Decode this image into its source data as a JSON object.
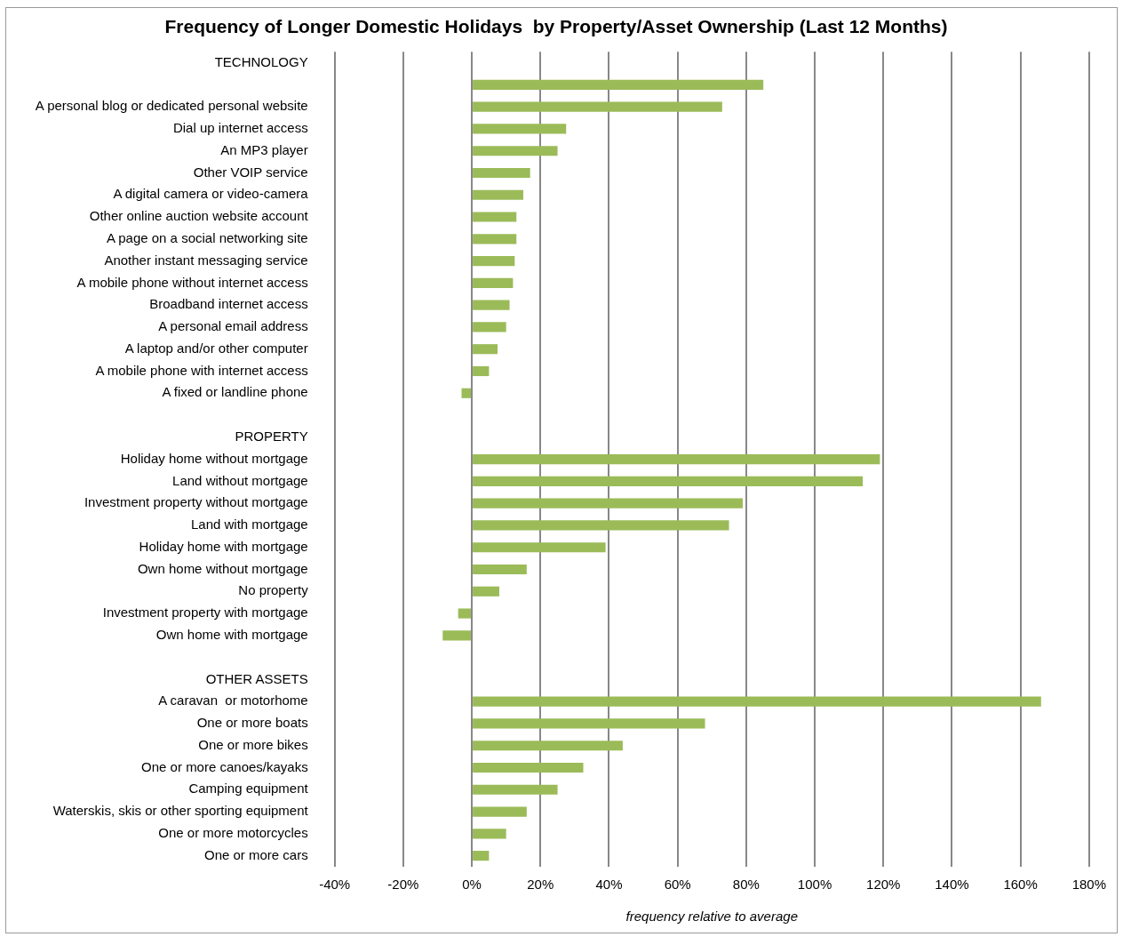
{
  "chart_data": {
    "type": "bar",
    "orientation": "horizontal",
    "title": "Frequency of Longer Domestic Holidays  by Property/Asset Ownership (Last 12 Months)",
    "xlabel": "frequency relative to average",
    "categories": [
      "TECHNOLOGY",
      null,
      "A personal blog or dedicated personal website",
      "Dial up internet access",
      "An MP3 player",
      "Other VOIP service",
      "A digital camera or video-camera",
      "Other online auction website account",
      "A page on a social networking site",
      "Another instant messaging service",
      "A mobile phone without internet access",
      "Broadband internet access",
      "A personal email address",
      "A laptop and/or other computer",
      "A mobile phone with internet access",
      "A fixed or landline phone",
      null,
      "PROPERTY",
      "Holiday home without mortgage",
      "Land without mortgage",
      "Investment property without mortgage",
      "Land with mortgage",
      "Holiday home with mortgage",
      "Own home without mortgage",
      "No property",
      "Investment property with mortgage",
      "Own home with mortgage",
      null,
      "OTHER ASSETS",
      "A caravan  or motorhome",
      "One or more boats",
      "One or more bikes",
      "One or more canoes/kayaks",
      "Camping equipment",
      "Waterskis, skis or other sporting equipment",
      "One or more motorcycles",
      "One or more cars"
    ],
    "values": [
      null,
      85,
      73,
      27.5,
      25,
      17,
      15,
      13,
      13,
      12.5,
      12,
      11,
      10,
      7.5,
      5,
      -3,
      null,
      null,
      119,
      114,
      79,
      75,
      39,
      16,
      8,
      -4,
      -8.5,
      null,
      null,
      166,
      68,
      44,
      32.5,
      25,
      16,
      10,
      5
    ],
    "color": "#9bbb59",
    "xlim": [
      -40,
      180
    ],
    "xticks": [
      {
        "value": -40,
        "label": "-40%"
      },
      {
        "value": -20,
        "label": "-20%"
      },
      {
        "value": 0,
        "label": "0%"
      },
      {
        "value": 20,
        "label": "20%"
      },
      {
        "value": 40,
        "label": "40%"
      },
      {
        "value": 60,
        "label": "60%"
      },
      {
        "value": 80,
        "label": "80%"
      },
      {
        "value": 100,
        "label": "100%"
      },
      {
        "value": 120,
        "label": "120%"
      },
      {
        "value": 140,
        "label": "140%"
      },
      {
        "value": 160,
        "label": "160%"
      },
      {
        "value": 180,
        "label": "180%"
      }
    ],
    "grid": "x",
    "legend": false
  }
}
